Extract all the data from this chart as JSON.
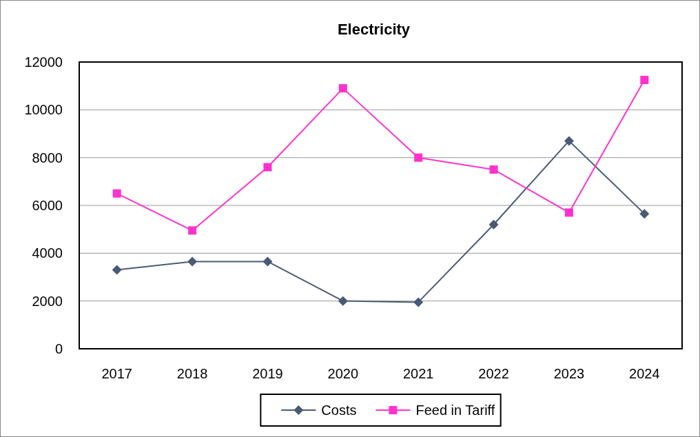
{
  "chart_data": {
    "type": "line",
    "title": "Electricity",
    "categories": [
      "2017",
      "2018",
      "2019",
      "2020",
      "2021",
      "2022",
      "2023",
      "2024"
    ],
    "series": [
      {
        "name": "Costs",
        "color": "#4a5a75",
        "marker": "diamond",
        "values": [
          3300,
          3650,
          3650,
          2000,
          1950,
          5200,
          8700,
          5650
        ]
      },
      {
        "name": "Feed in Tariff",
        "color": "#ff33cc",
        "marker": "square",
        "values": [
          6500,
          4950,
          7600,
          10900,
          8000,
          7500,
          5700,
          11250
        ]
      }
    ],
    "ylim": [
      0,
      12000
    ],
    "yticks": [
      0,
      2000,
      4000,
      6000,
      8000,
      10000,
      12000
    ],
    "grid": "y",
    "legend": "bottom"
  }
}
